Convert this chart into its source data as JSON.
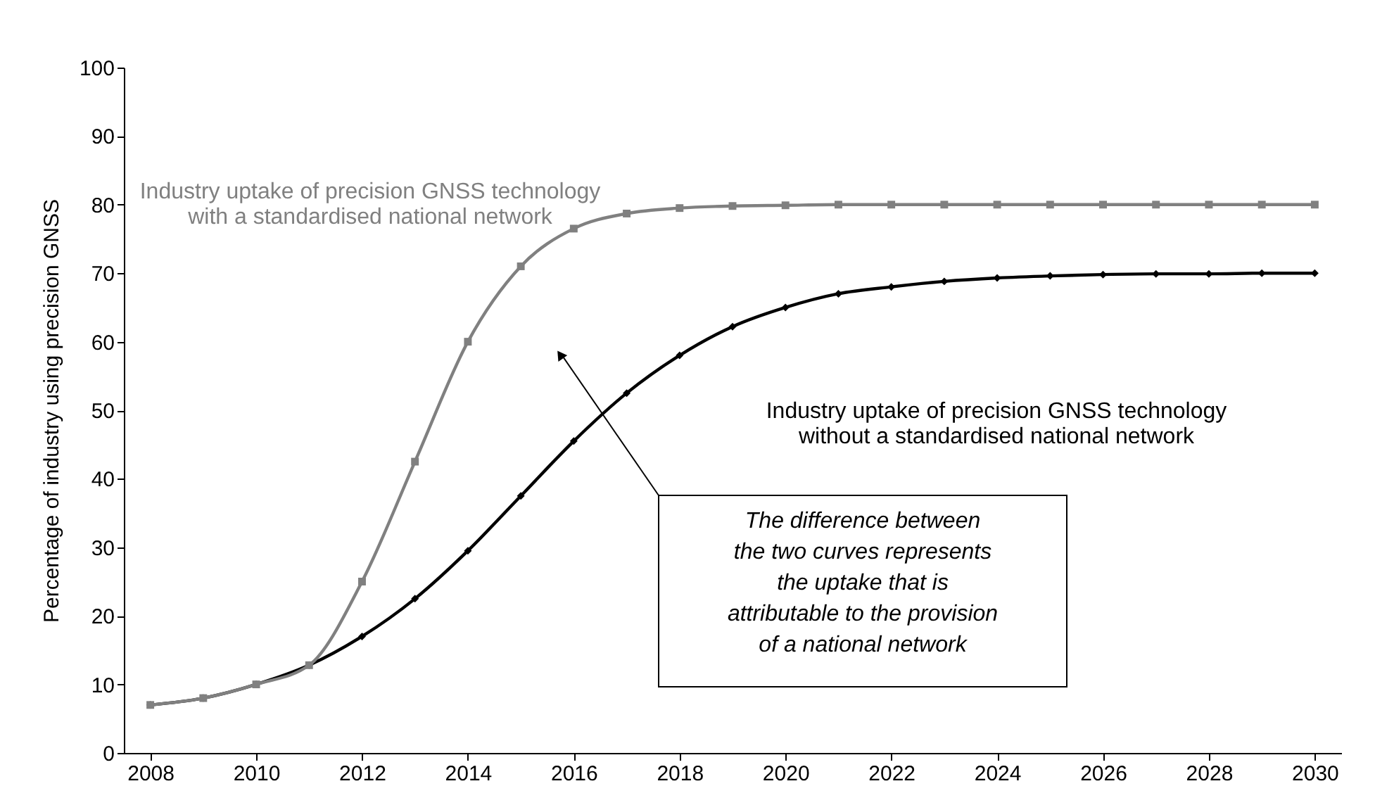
{
  "chart_data": {
    "type": "line",
    "x": [
      2008,
      2009,
      2010,
      2011,
      2012,
      2013,
      2014,
      2015,
      2016,
      2017,
      2018,
      2019,
      2020,
      2021,
      2022,
      2023,
      2024,
      2025,
      2026,
      2027,
      2028,
      2029,
      2030
    ],
    "ylabel": "Percentage of industry using precision GNSS",
    "series": [
      {
        "name": "Industry uptake of precision GNSS technology\nwith a standardised national network",
        "color": "#808080",
        "marker": "square",
        "values": [
          7,
          8,
          10,
          12.8,
          25,
          42.5,
          60,
          71,
          76.5,
          78.7,
          79.5,
          79.8,
          79.9,
          80,
          80,
          80,
          80,
          80,
          80,
          80,
          80,
          80,
          80
        ]
      },
      {
        "name": "Industry uptake of precision GNSS technology\nwithout a standardised national network",
        "color": "#000000",
        "marker": "diamond",
        "values": [
          7,
          8,
          10,
          12.8,
          17,
          22.5,
          29.5,
          37.5,
          45.5,
          52.5,
          58,
          62.2,
          65,
          67,
          68,
          68.8,
          69.3,
          69.6,
          69.8,
          69.9,
          69.9,
          70,
          70
        ]
      }
    ],
    "annotations": [
      "The difference between\nthe two curves represents\nthe uptake that is\nattributable to the provision\nof a national network"
    ],
    "xlim": [
      2007.5,
      2030.5
    ],
    "xticks": [
      2008,
      2010,
      2012,
      2014,
      2016,
      2018,
      2020,
      2022,
      2024,
      2026,
      2028,
      2030
    ],
    "ylim": [
      0,
      100
    ],
    "yticks": [
      0,
      10,
      20,
      30,
      40,
      50,
      60,
      70,
      80,
      90,
      100
    ],
    "grid": false,
    "line_style": "solid"
  }
}
